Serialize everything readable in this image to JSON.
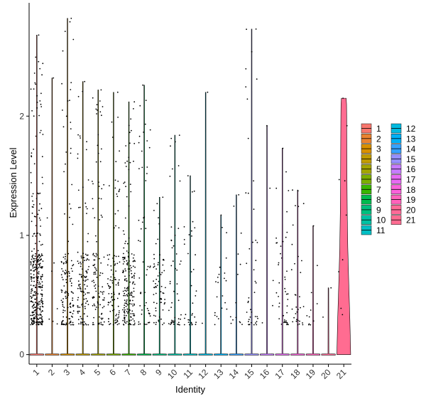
{
  "chart_data": {
    "type": "violin",
    "xlabel": "Identity",
    "ylabel": "Expression Level",
    "ylim": [
      -0.08,
      2.95
    ],
    "y_ticks": [
      0,
      1,
      2
    ],
    "categories": [
      "1",
      "2",
      "3",
      "4",
      "5",
      "6",
      "7",
      "8",
      "9",
      "10",
      "11",
      "12",
      "13",
      "14",
      "15",
      "16",
      "17",
      "18",
      "19",
      "20",
      "21"
    ],
    "colors": [
      "#F8766D",
      "#EA8331",
      "#D89000",
      "#C09B00",
      "#A3A500",
      "#7CAE00",
      "#39B600",
      "#00BB4E",
      "#00BF7D",
      "#00C1A3",
      "#00BFC4",
      "#00BAE0",
      "#00B0F6",
      "#35A2FF",
      "#9590FF",
      "#C77CFF",
      "#E76BF3",
      "#FA62DB",
      "#FF62BC",
      "#FF6A98",
      "#FF6C91"
    ],
    "max_values": [
      2.68,
      2.32,
      2.82,
      2.29,
      2.22,
      2.2,
      2.12,
      2.26,
      1.32,
      1.84,
      1.5,
      2.2,
      1.17,
      1.34,
      2.73,
      1.92,
      1.73,
      1.38,
      1.08,
      0.56,
      2.15
    ],
    "nonzero_counts": [
      330,
      8,
      140,
      120,
      110,
      100,
      180,
      55,
      65,
      50,
      35,
      2,
      22,
      14,
      42,
      5,
      45,
      32,
      11,
      2,
      9
    ],
    "group21_density": {
      "y": [
        0,
        0.3,
        0.6,
        0.9,
        1.2,
        1.5,
        1.8,
        2.0,
        2.1,
        2.15
      ],
      "width": [
        1.0,
        0.88,
        0.72,
        0.58,
        0.5,
        0.46,
        0.44,
        0.42,
        0.4,
        0.35
      ]
    },
    "legend": {
      "position": "right",
      "columns": 2,
      "entries": [
        "1",
        "2",
        "3",
        "4",
        "5",
        "6",
        "7",
        "8",
        "9",
        "10",
        "11",
        "12",
        "13",
        "14",
        "15",
        "16",
        "17",
        "18",
        "19",
        "20",
        "21"
      ]
    }
  }
}
